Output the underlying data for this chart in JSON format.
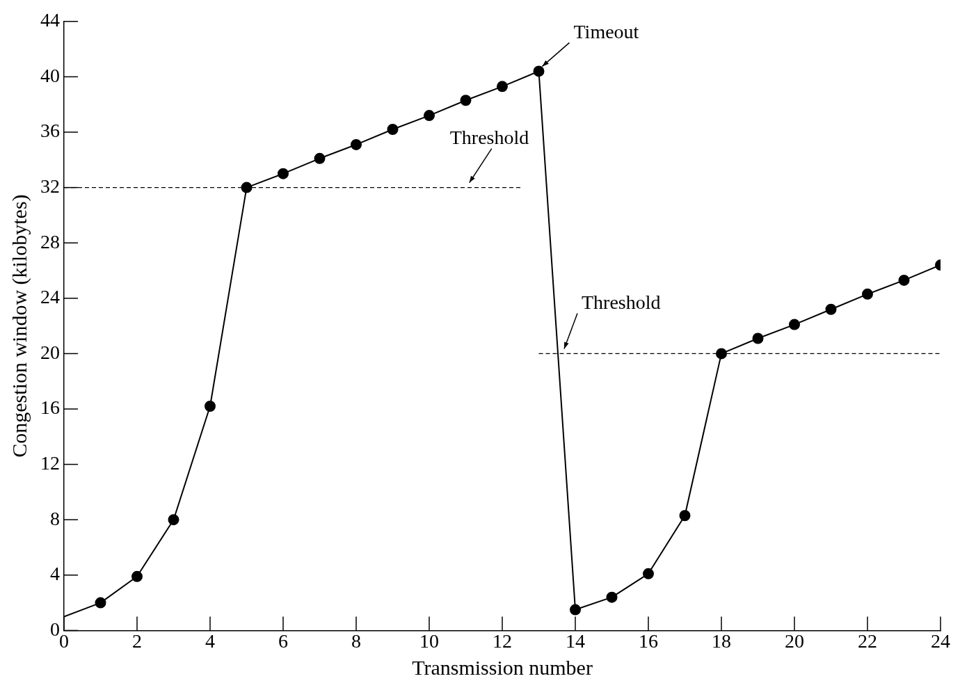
{
  "chart_data": {
    "type": "line",
    "xlabel": "Transmission number",
    "ylabel": "Congestion window (kilobytes)",
    "xlim": [
      0,
      24
    ],
    "xticks": [
      0,
      2,
      4,
      6,
      8,
      10,
      12,
      14,
      16,
      18,
      20,
      22,
      24
    ],
    "ylim": [
      0,
      44
    ],
    "yticks": [
      0,
      4,
      8,
      12,
      16,
      20,
      24,
      28,
      32,
      36,
      40,
      44
    ],
    "grid": false,
    "legend": false,
    "marker": "circle",
    "series": [
      {
        "color": "#000000",
        "line_style": "solid",
        "x": [
          0,
          1,
          2,
          3,
          4,
          5,
          6,
          7,
          8,
          9,
          10,
          11,
          12,
          13,
          14,
          15,
          16,
          17,
          18,
          19,
          20,
          21,
          22,
          23,
          24
        ],
        "values": [
          1,
          2,
          3.9,
          8,
          16.2,
          32,
          33,
          34.1,
          35.1,
          36.2,
          37.2,
          38.3,
          39.3,
          40.4,
          1.5,
          2.4,
          4.1,
          8.3,
          20,
          21.1,
          22.1,
          23.2,
          24.3,
          25.3,
          26.4
        ]
      },
      {
        "color": "#000000",
        "marker": "none",
        "line_style": "dashed",
        "x": [
          0,
          12.5
        ],
        "values": [
          32,
          32
        ]
      },
      {
        "color": "#000000",
        "marker": "none",
        "line_style": "dashed",
        "x": [
          13,
          24
        ],
        "values": [
          20,
          20
        ]
      }
    ],
    "annotations": [
      {
        "text": "Timeout",
        "x": 13,
        "y": 40.4
      },
      {
        "text": "Threshold",
        "x": 11.1,
        "y": 32
      },
      {
        "text": "Threshold",
        "x": 13.6,
        "y": 20
      }
    ]
  }
}
